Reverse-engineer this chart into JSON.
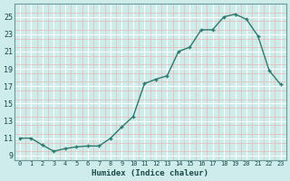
{
  "x": [
    0,
    1,
    2,
    3,
    4,
    5,
    6,
    7,
    8,
    9,
    10,
    11,
    12,
    13,
    14,
    15,
    16,
    17,
    18,
    19,
    20,
    21,
    22,
    23
  ],
  "y": [
    11,
    11,
    10.2,
    9.5,
    9.8,
    10,
    10.1,
    10.1,
    11,
    12.3,
    13.5,
    17.3,
    17.8,
    18.2,
    21,
    21.5,
    23.5,
    23.5,
    25,
    25.3,
    24.7,
    22.8,
    18.8,
    17.2
  ],
  "xlabel": "Humidex (Indice chaleur)",
  "xlim": [
    -0.5,
    23.5
  ],
  "ylim": [
    8.5,
    26.5
  ],
  "yticks": [
    9,
    11,
    13,
    15,
    17,
    19,
    21,
    23,
    25
  ],
  "xticks": [
    0,
    1,
    2,
    3,
    4,
    5,
    6,
    7,
    8,
    9,
    10,
    11,
    12,
    13,
    14,
    15,
    16,
    17,
    18,
    19,
    20,
    21,
    22,
    23
  ],
  "line_color": "#2d7a6e",
  "marker_color": "#2d7a6e",
  "bg_color": "#cdecea",
  "major_grid_color": "#ffffff",
  "minor_grid_color": "#e8b8b8",
  "spine_color": "#6a9a9a"
}
